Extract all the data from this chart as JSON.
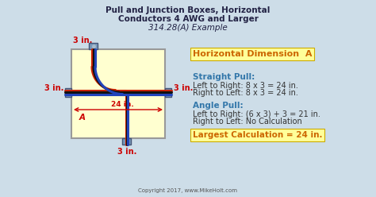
{
  "title_line1": "Pull and Junction Boxes, Horizontal",
  "title_line2": "Conductors 4 AWG and Larger",
  "title_line3": "314.28(A) Example",
  "bg_color": "#cddde8",
  "box_fill": "#ffffd0",
  "box_border": "#999999",
  "header_bg": "#ffff99",
  "dim_label": "Horizontal Dimension  A",
  "dim_label_color": "#cc6600",
  "straight_pull_header": "Straight Pull:",
  "straight_pull_1": "Left to Right: 8 x 3 = 24 in.",
  "straight_pull_2": "Right to Left: 8 x 3 = 24 in.",
  "angle_pull_header": "Angle Pull:",
  "angle_pull_1": "Left to Right: (6 x 3) + 3 = 21 in.",
  "angle_pull_2": "Right to Left: No Calculation",
  "largest_calc": "Largest Calculation = 24 in.",
  "largest_calc_color": "#cc6600",
  "pull_header_color": "#3377aa",
  "body_text_color": "#333333",
  "dim_color": "#cc0000",
  "label_3in": "3 in.",
  "label_24in": "24 in.",
  "label_A": "A",
  "copyright": "Copyright 2017, www.MikeHolt.com",
  "title_color": "#222244",
  "connector_color": "#7799bb",
  "connector_border": "#445577",
  "wire_colors": [
    "#cc2200",
    "#111111",
    "#2244bb"
  ],
  "wire_highlight": [
    "#dd4422",
    "#333333",
    "#3366cc"
  ]
}
